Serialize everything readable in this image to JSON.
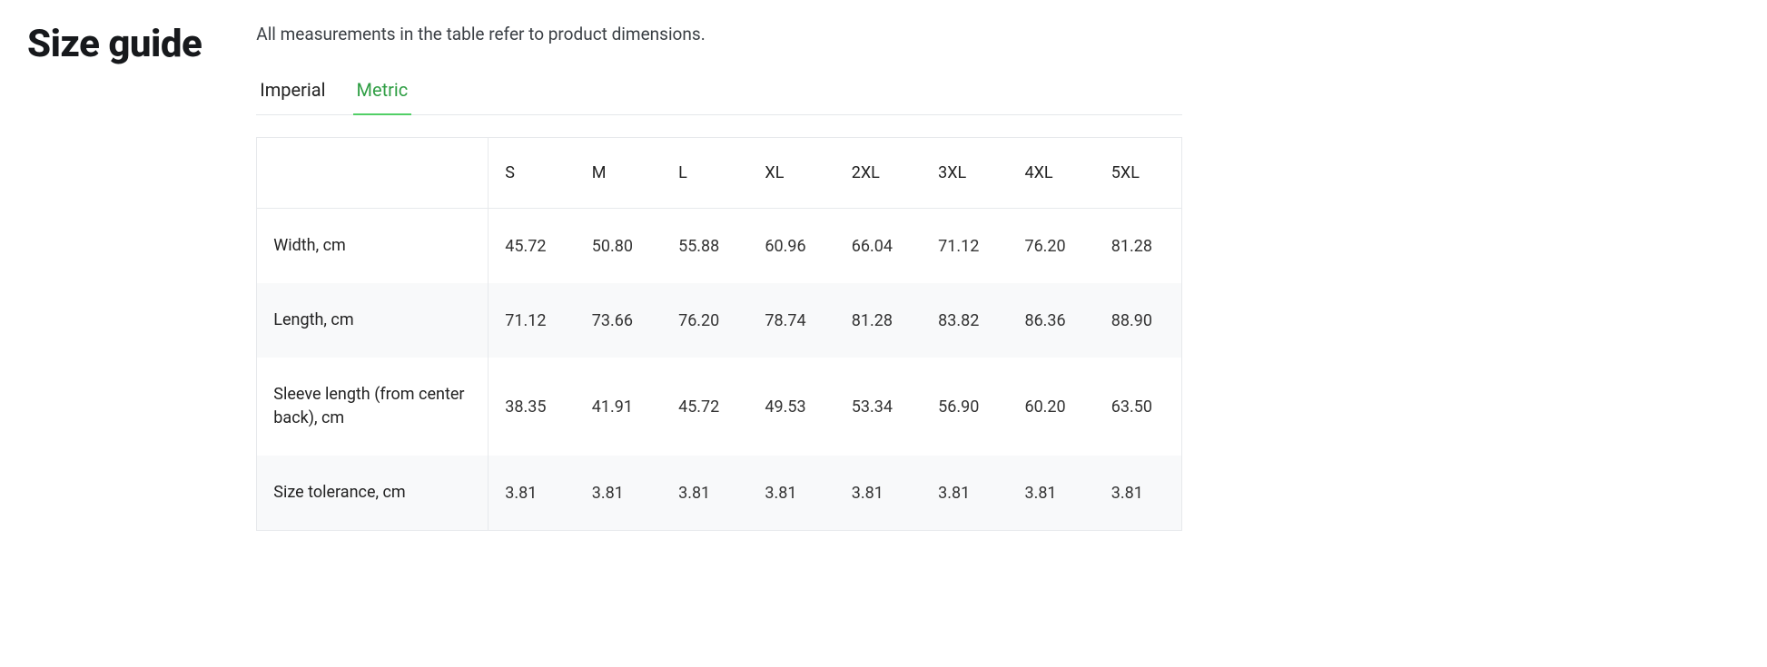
{
  "title": "Size guide",
  "subtitle": "All measurements in the table refer to product dimensions.",
  "tabs": [
    {
      "label": "Imperial",
      "active": false
    },
    {
      "label": "Metric",
      "active": true
    }
  ],
  "table": {
    "type": "table",
    "background_color": "#ffffff",
    "alt_row_color": "#f8f9fa",
    "border_color": "#e7e9ec",
    "font_size_pt": 14,
    "columns": [
      "",
      "S",
      "M",
      "L",
      "XL",
      "2XL",
      "3XL",
      "4XL",
      "5XL"
    ],
    "rows": [
      {
        "label": "Width, cm",
        "values": [
          "45.72",
          "50.80",
          "55.88",
          "60.96",
          "66.04",
          "71.12",
          "76.20",
          "81.28"
        ]
      },
      {
        "label": "Length, cm",
        "values": [
          "71.12",
          "73.66",
          "76.20",
          "78.74",
          "81.28",
          "83.82",
          "86.36",
          "88.90"
        ]
      },
      {
        "label": "Sleeve length (from center back), cm",
        "values": [
          "38.35",
          "41.91",
          "45.72",
          "49.53",
          "53.34",
          "56.90",
          "60.20",
          "63.50"
        ]
      },
      {
        "label": "Size tolerance, cm",
        "values": [
          "3.81",
          "3.81",
          "3.81",
          "3.81",
          "3.81",
          "3.81",
          "3.81",
          "3.81"
        ]
      }
    ]
  },
  "colors": {
    "tab_active_text": "#2f9e44",
    "tab_active_border": "#51cf66",
    "text_primary": "#17191c"
  }
}
